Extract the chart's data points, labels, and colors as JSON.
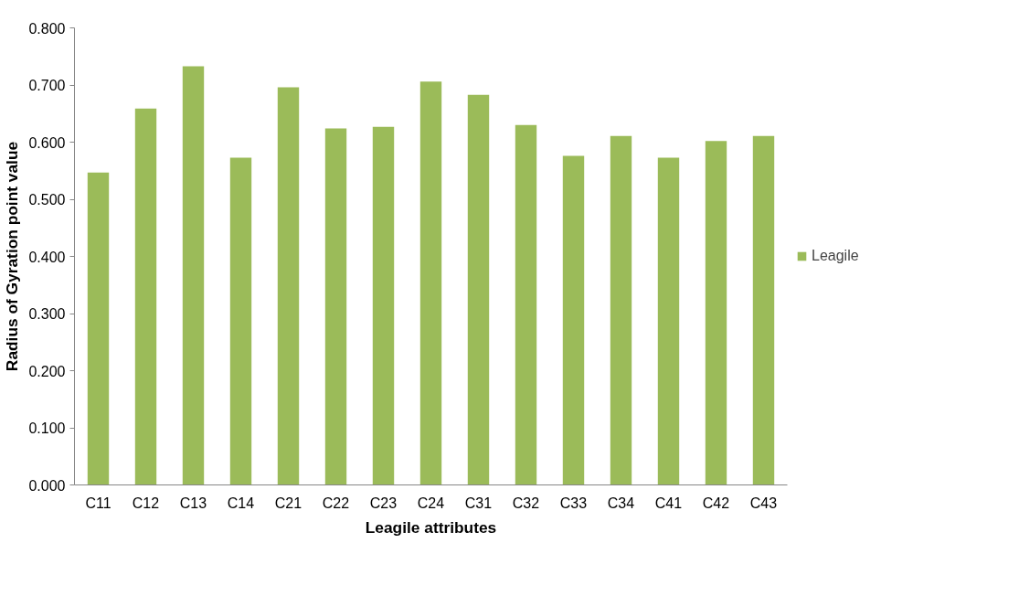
{
  "chart_data": {
    "type": "bar",
    "xlabel": "Leagile attributes",
    "ylabel": "Radius of Gyration point value",
    "categories": [
      "C11",
      "C12",
      "C13",
      "C14",
      "C21",
      "C22",
      "C23",
      "C24",
      "C31",
      "C32",
      "C33",
      "C34",
      "C41",
      "C42",
      "C43"
    ],
    "series": [
      {
        "name": "Leagile",
        "color": "#9bbb59",
        "values": [
          0.547,
          0.659,
          0.733,
          0.573,
          0.696,
          0.624,
          0.627,
          0.706,
          0.683,
          0.63,
          0.576,
          0.611,
          0.573,
          0.602,
          0.611
        ]
      }
    ],
    "ylim": [
      0,
      0.8
    ],
    "yticks": [
      {
        "value": 0,
        "label": "0.000"
      },
      {
        "value": 0.1,
        "label": "0.100"
      },
      {
        "value": 0.2,
        "label": "0.200"
      },
      {
        "value": 0.3,
        "label": "0.300"
      },
      {
        "value": 0.4,
        "label": "0.400"
      },
      {
        "value": 0.5,
        "label": "0.500"
      },
      {
        "value": 0.6,
        "label": "0.600"
      },
      {
        "value": 0.7,
        "label": "0.700"
      },
      {
        "value": 0.8,
        "label": "0.800"
      }
    ],
    "grid": false,
    "legend": "right"
  }
}
